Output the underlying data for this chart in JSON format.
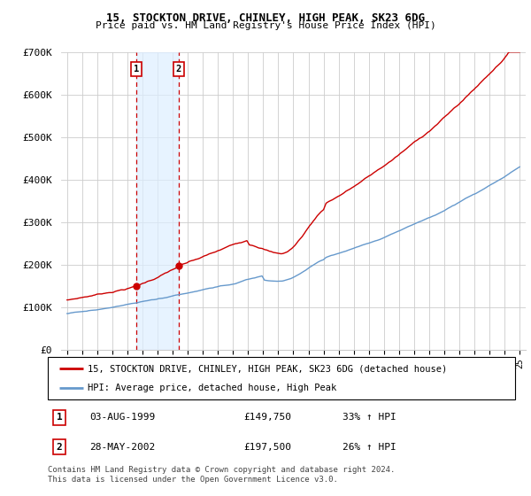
{
  "title": "15, STOCKTON DRIVE, CHINLEY, HIGH PEAK, SK23 6DG",
  "subtitle": "Price paid vs. HM Land Registry's House Price Index (HPI)",
  "legend_line1": "15, STOCKTON DRIVE, CHINLEY, HIGH PEAK, SK23 6DG (detached house)",
  "legend_line2": "HPI: Average price, detached house, High Peak",
  "footnote": "Contains HM Land Registry data © Crown copyright and database right 2024.\nThis data is licensed under the Open Government Licence v3.0.",
  "transactions": [
    {
      "num": 1,
      "date": "03-AUG-1999",
      "price": "£149,750",
      "change": "33% ↑ HPI",
      "year": 1999.58,
      "price_val": 149750
    },
    {
      "num": 2,
      "date": "28-MAY-2002",
      "price": "£197,500",
      "change": "26% ↑ HPI",
      "year": 2002.4,
      "price_val": 197500
    }
  ],
  "red_color": "#cc0000",
  "hpi_color": "#6699cc",
  "shade_color": "#ddeeff",
  "ylim": [
    0,
    700000
  ],
  "yticks": [
    0,
    100000,
    200000,
    300000,
    400000,
    500000,
    600000,
    700000
  ],
  "ytick_labels": [
    "£0",
    "£100K",
    "£200K",
    "£300K",
    "£400K",
    "£500K",
    "£600K",
    "£700K"
  ],
  "xstart": 1995,
  "xend": 2025
}
